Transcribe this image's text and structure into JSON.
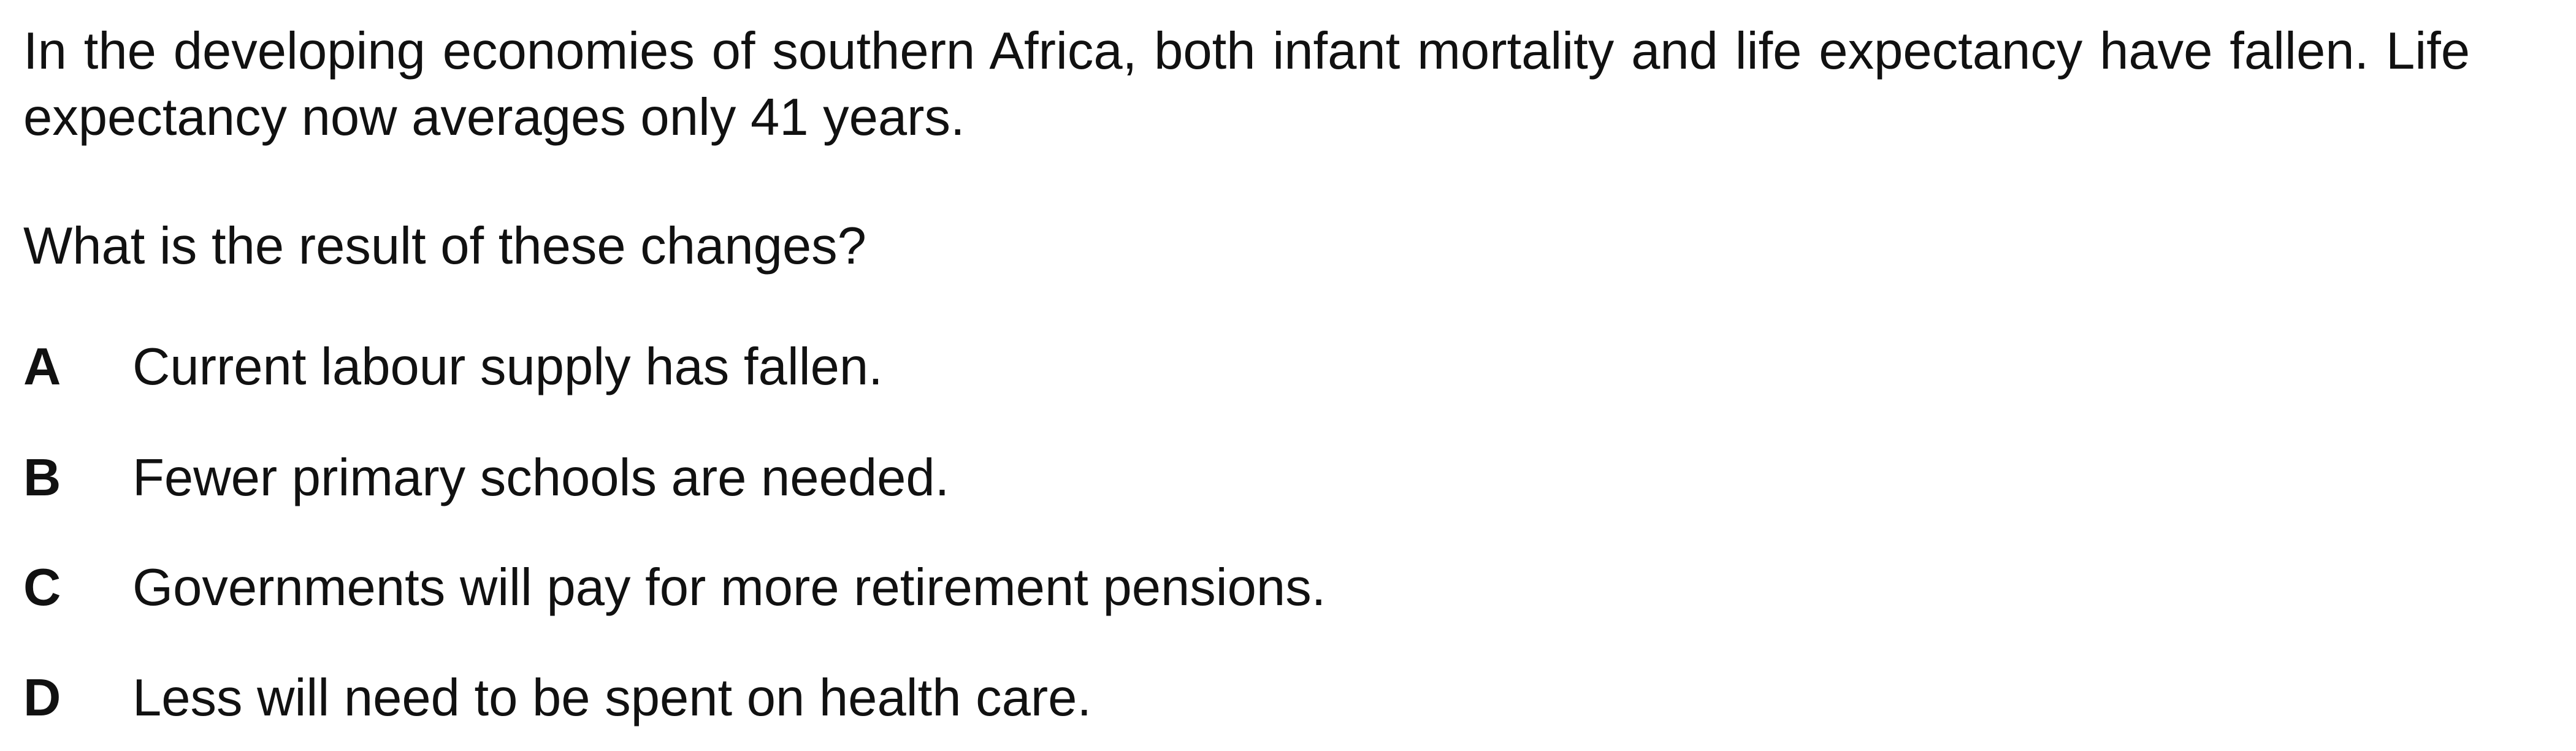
{
  "question": {
    "stem": "In the developing economies of southern Africa, both infant mortality and life expectancy have fallen.  Life expectancy now averages only 41 years.",
    "prompt": "What is the result of these changes?"
  },
  "options": [
    {
      "letter": "A",
      "text": "Current labour supply has fallen."
    },
    {
      "letter": "B",
      "text": "Fewer primary schools are needed."
    },
    {
      "letter": "C",
      "text": "Governments will pay for more retirement pensions."
    },
    {
      "letter": "D",
      "text": "Less will need to be spent on health care."
    }
  ]
}
